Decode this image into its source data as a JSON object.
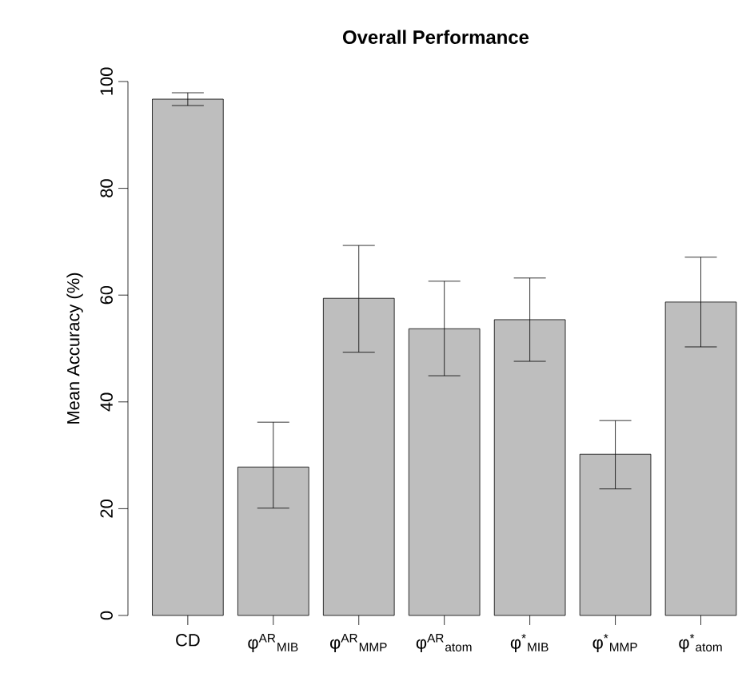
{
  "chart_data": {
    "type": "bar",
    "title": "**Overall Performance**",
    "ylabel": "Mean Accuracy (%)",
    "categories": [
      "CD",
      "φ$^{AR}$$_{MIB}$",
      "φ$^{AR}$$_{MMP}$",
      "φ$^{AR}$$_{atom}$",
      "φ$^{*}$$_{MIB}$",
      "φ$^{*}$$_{MMP}$",
      "φ$^{*}$$_{atom}$"
    ],
    "values": [
      96.7,
      27.8,
      59.4,
      53.7,
      55.4,
      30.2,
      58.7
    ],
    "errors": [
      [
        95.5,
        97.9
      ],
      [
        20.1,
        36.2
      ],
      [
        49.3,
        69.3
      ],
      [
        44.9,
        62.6
      ],
      [
        47.6,
        63.2
      ],
      [
        23.7,
        36.5
      ],
      [
        50.3,
        67.1
      ]
    ],
    "color": "#bebebe",
    "ylim": [
      0,
      100
    ],
    "yticks": [
      0,
      20,
      40,
      60,
      80,
      100
    ],
    "grid": false
  }
}
